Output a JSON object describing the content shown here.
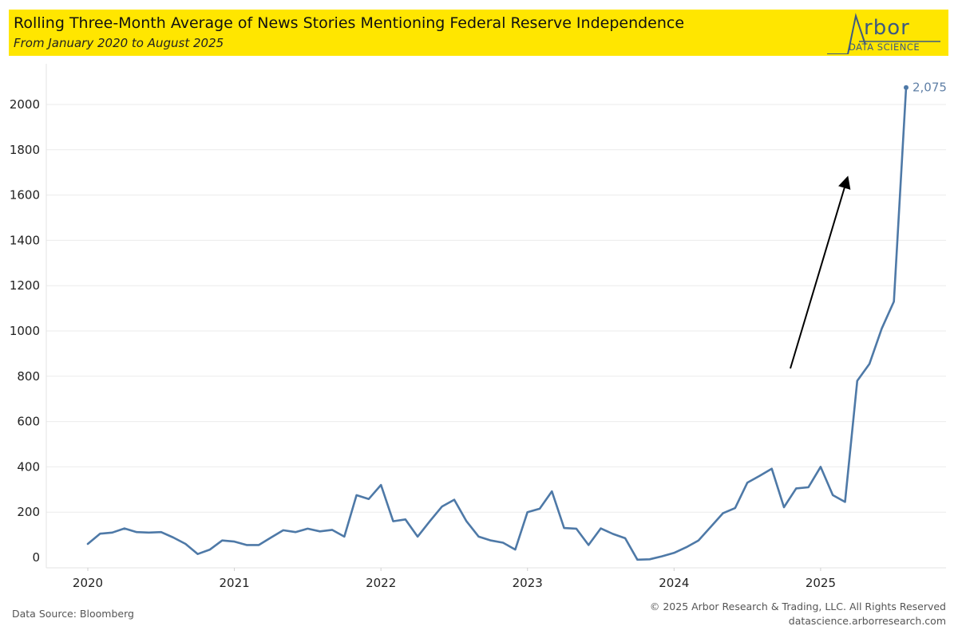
{
  "header": {
    "title": "Rolling Three-Month Average of News Stories Mentioning Federal Reserve Independence",
    "subtitle": "From January 2020 to August 2025"
  },
  "logo": {
    "word": "rbor",
    "sub": "DATA SCIENCE"
  },
  "colors": {
    "header_bg": "#ffe600",
    "line": "#4e79a7",
    "logo": "#3d5a80",
    "arrow": "#000000"
  },
  "footer": {
    "source": "Data Source: Bloomberg",
    "copyright": "© 2025 Arbor Research & Trading, LLC. All Rights Reserved",
    "website": "datascience.arborresearch.com"
  },
  "chart_data": {
    "type": "line",
    "title": "Rolling Three-Month Average of News Stories Mentioning Federal Reserve Independence",
    "xlabel": "",
    "ylabel": "",
    "x_start": "2020-01",
    "ylim": [
      0,
      2150
    ],
    "yticks": [
      0,
      200,
      400,
      600,
      800,
      1000,
      1200,
      1400,
      1600,
      1800,
      2000
    ],
    "ytick_labels": [
      "0",
      "200",
      "400",
      "600",
      "800",
      "1000",
      "1200",
      "1400",
      "1600",
      "1800",
      "2000"
    ],
    "xtick_labels": [
      "2020",
      "2021",
      "2022",
      "2023",
      "2024",
      "2025"
    ],
    "grid": "horizontal",
    "series": [
      {
        "name": "Rolling Three-Month Average",
        "values": [
          60,
          105,
          110,
          128,
          112,
          110,
          112,
          88,
          60,
          15,
          35,
          75,
          70,
          55,
          55,
          88,
          120,
          112,
          127,
          115,
          122,
          92,
          275,
          258,
          320,
          160,
          168,
          92,
          160,
          225,
          255,
          160,
          92,
          75,
          65,
          35,
          200,
          215,
          292,
          130,
          127,
          55,
          128,
          104,
          85,
          -10,
          -8,
          5,
          20,
          45,
          75,
          135,
          195,
          218,
          330,
          360,
          392,
          222,
          305,
          310,
          400,
          275,
          245,
          780,
          855,
          1010,
          1130,
          2075
        ]
      }
    ],
    "end_label": "2,075"
  }
}
